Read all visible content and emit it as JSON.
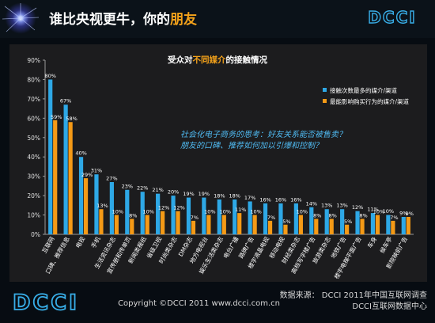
{
  "header": {
    "title_main": "谁比央视更牛，你的",
    "title_accent": "朋友",
    "logo_text": "DCCI"
  },
  "chart_title": {
    "prefix": "受众对",
    "accent": "不同媒介",
    "suffix": "的接触情况"
  },
  "annotation": {
    "line1": "社会化电子商务的思考：好友关系能否被售卖？",
    "line2": "朋友的口碑、推荐如何加以引爆和控制？"
  },
  "footer": {
    "logo_text": "DCCI",
    "source": "数据来源： DCCI 2011年中国互联网调查",
    "copyright": "Copyright ©DCCI 2011 www.dcci.com.cn",
    "center": "DCCI互联网数据中心"
  },
  "colors": {
    "series1": "#2ea8e6",
    "series2": "#f59a16",
    "accent": "#f4a21a",
    "annotation": "#4fb9f0"
  },
  "chart_data": {
    "type": "bar",
    "ylim": [
      0,
      90
    ],
    "yticks": [
      "0%",
      "10%",
      "20%",
      "30%",
      "40%",
      "50%",
      "60%",
      "70%",
      "80%",
      "90%"
    ],
    "grid": false,
    "legend_position": "top-right",
    "categories": [
      "互联网",
      "口碑、推荐信息",
      "电视",
      "手机",
      "生活资讯杂志",
      "宣传册和传单页",
      "新闻类报纸",
      "省级卫视",
      "时尚类杂志",
      "DM杂志",
      "地方电视台",
      "娱乐生活类杂志",
      "电台广播",
      "路牌广告",
      "楼宇液晶电视",
      "移动电视",
      "财经类杂志",
      "高档写字楼广告",
      "旅游类杂志",
      "地铁广告",
      "楼宇电梯平面广告",
      "车身",
      "候车亭",
      "影院映前广告"
    ],
    "series": [
      {
        "name": "接触次数最多的媒介/渠道",
        "values": [
          80,
          67,
          40,
          31,
          27,
          23,
          22,
          21,
          20,
          19,
          19,
          18,
          18,
          17,
          16,
          16,
          16,
          14,
          13,
          13,
          12,
          11,
          10,
          9
        ],
        "labels": [
          "80%",
          "67%",
          "40%",
          "31%",
          "27%",
          "23%",
          "22%",
          "21%",
          "20%",
          "19%",
          "19%",
          "18%",
          "18%",
          "17%",
          "16%",
          "16%",
          "16%",
          "14%",
          "13%",
          "13%",
          "12%",
          "11%",
          "10%",
          "9%"
        ]
      },
      {
        "name": "最能影响购买行为的媒介/渠道",
        "values": [
          59,
          58,
          29,
          13,
          10,
          8,
          10,
          12,
          12,
          7,
          10,
          10,
          11,
          10,
          7,
          5,
          10,
          8,
          8,
          5,
          8,
          10,
          7,
          9
        ],
        "labels": [
          "59%",
          "58%",
          "29%",
          "13%",
          "10%",
          "8%",
          "10%",
          "12%",
          "12%",
          "7%",
          "10%",
          "10%",
          "11%",
          "10%",
          "7%",
          "5%",
          "10%",
          "8%",
          "8%",
          "5%",
          "8%",
          "10%",
          "7%",
          "9%"
        ]
      }
    ]
  }
}
